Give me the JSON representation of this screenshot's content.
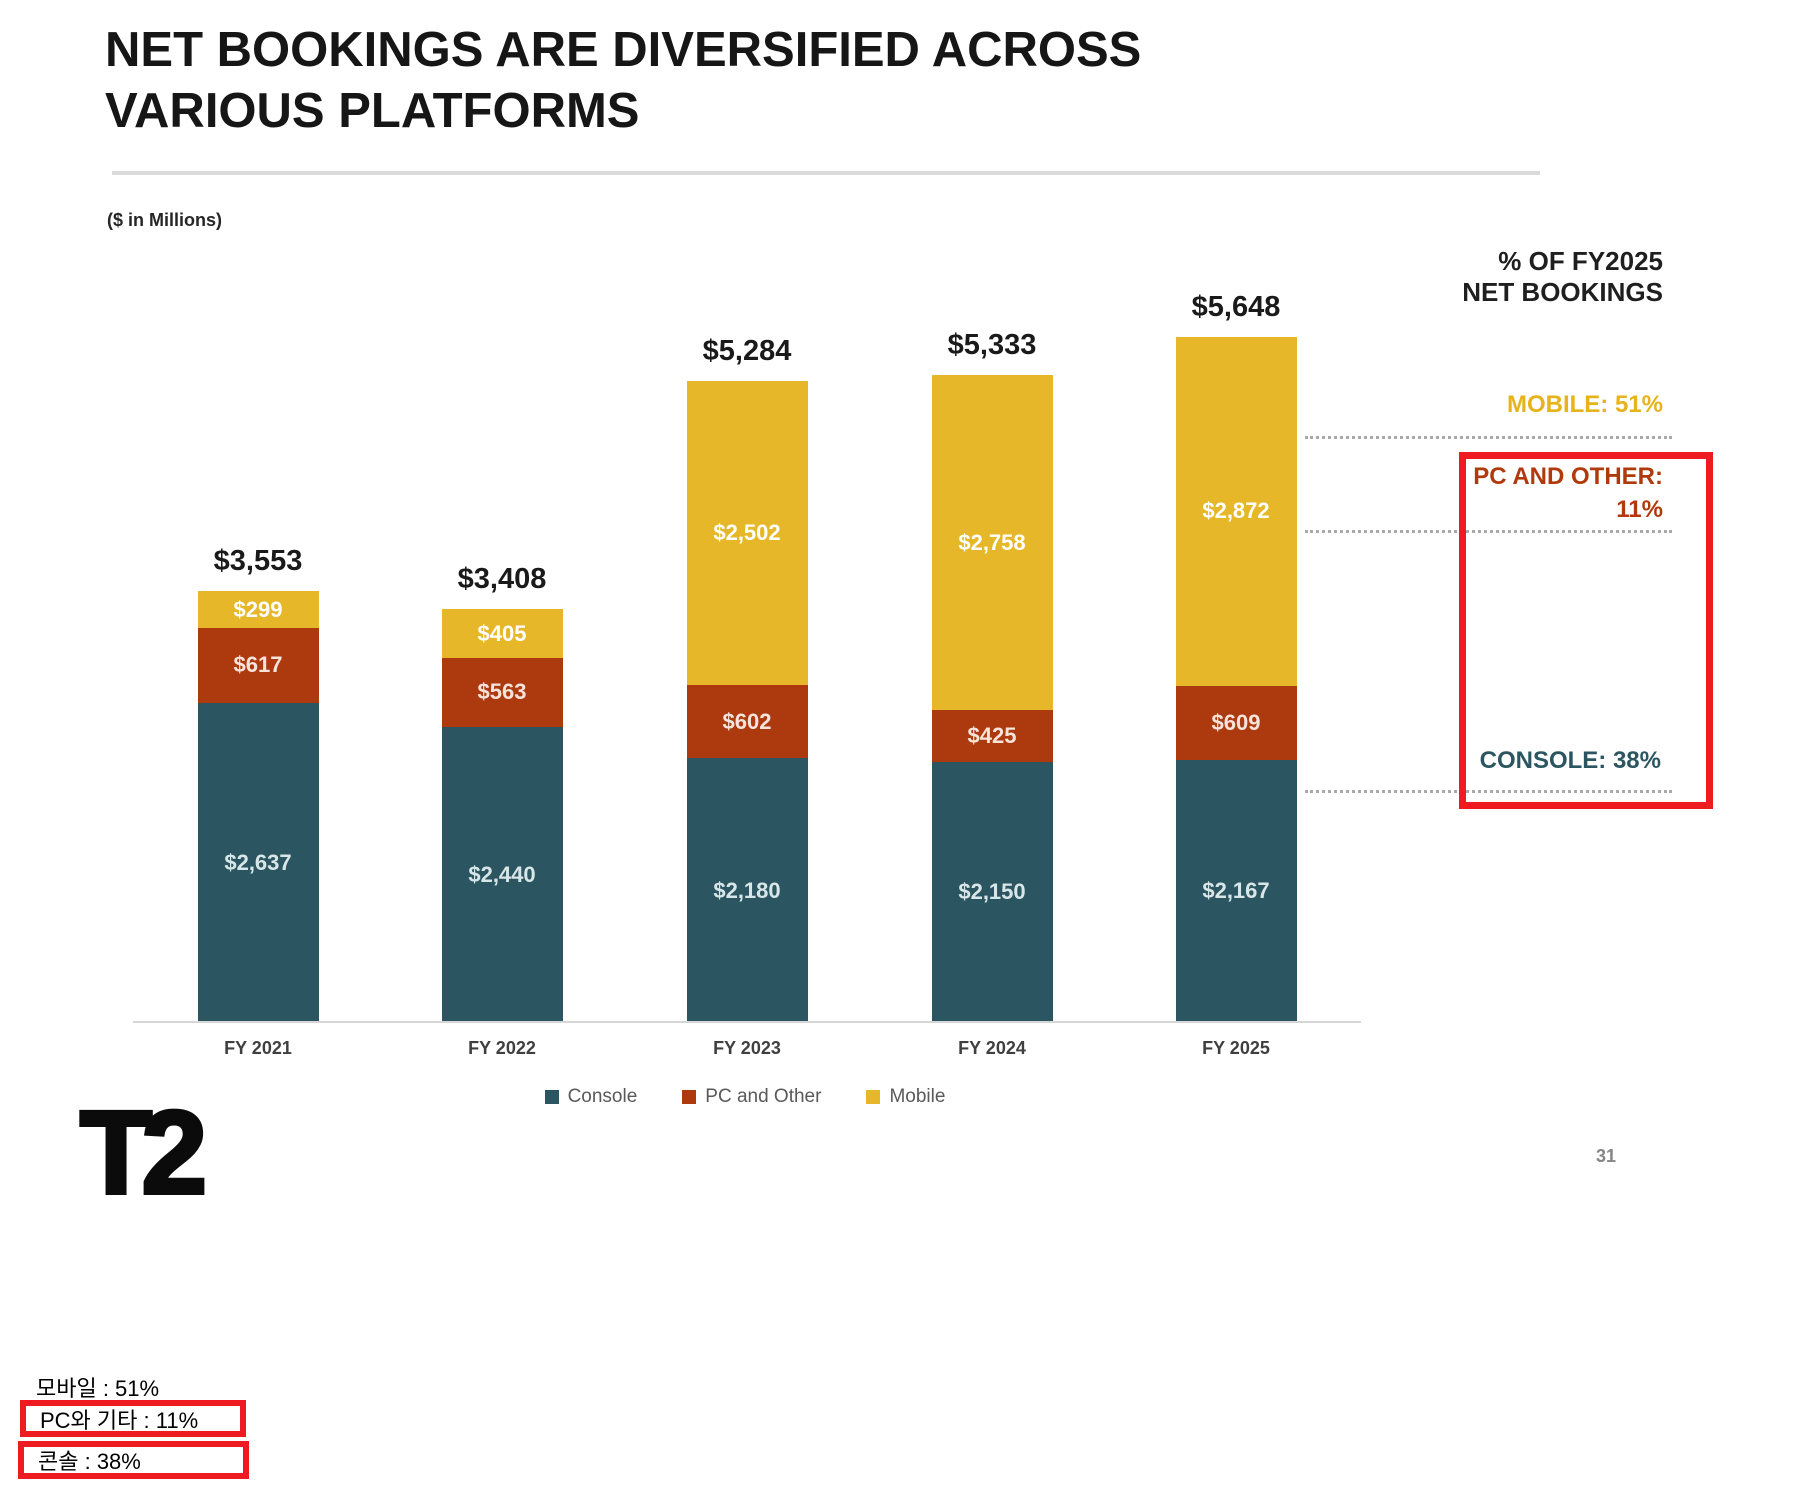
{
  "slide": {
    "title_line1": "NET BOOKINGS ARE DIVERSIFIED ACROSS",
    "title_line2": "VARIOUS PLATFORMS",
    "units_note": "($ in Millions)",
    "page_number": "31",
    "logo_text": "T2"
  },
  "right_panel": {
    "header_line1": "% OF FY2025",
    "header_line2": "NET BOOKINGS",
    "mobile_label": "MOBILE: 51%",
    "pc_label_line1": "PC AND OTHER:",
    "pc_label_line2": "11%",
    "console_label": "CONSOLE: 38%"
  },
  "annotations_korean": {
    "mobile": "모바일 : 51%",
    "pc": "PC와 기타 : 11%",
    "console": "콘솔 : 38%"
  },
  "legend": [
    {
      "label": "Console",
      "color": "#2b5661"
    },
    {
      "label": "PC and Other",
      "color": "#ac3a0e"
    },
    {
      "label": "Mobile",
      "color": "#e6b829"
    }
  ],
  "colors": {
    "console": "#2b5661",
    "pc_and_other": "#ac3a0e",
    "mobile": "#e6b829",
    "highlight_red": "#ee1c20",
    "mobile_text": "#e7b31c",
    "pc_text": "#b13a0d",
    "console_text": "#2b5661",
    "dotted_line": "#a9a9a9"
  },
  "chart_data": {
    "type": "bar",
    "stacked": true,
    "title": "NET BOOKINGS ARE DIVERSIFIED ACROSS VARIOUS PLATFORMS",
    "units": "$ in Millions",
    "categories": [
      "FY 2021",
      "FY 2022",
      "FY 2023",
      "FY 2024",
      "FY 2025"
    ],
    "totals": [
      3553,
      3408,
      5284,
      5333,
      5648
    ],
    "total_labels": [
      "$3,553",
      "$3,408",
      "$5,284",
      "$5,333",
      "$5,648"
    ],
    "series": [
      {
        "name": "Console",
        "color": "#2b5661",
        "label_color": "#d9e6e8",
        "values": [
          2637,
          2440,
          2180,
          2150,
          2167
        ],
        "labels": [
          "$2,637",
          "$2,440",
          "$2,180",
          "$2,150",
          "$2,167"
        ]
      },
      {
        "name": "PC and Other",
        "color": "#ac3a0e",
        "label_color": "#f6e3db",
        "values": [
          617,
          563,
          602,
          425,
          609
        ],
        "labels": [
          "$617",
          "$563",
          "$602",
          "$425",
          "$609"
        ]
      },
      {
        "name": "Mobile",
        "color": "#e6b829",
        "label_color": "#ffffff",
        "values": [
          299,
          405,
          2502,
          2758,
          2872
        ],
        "labels": [
          "$299",
          "$405",
          "$2,502",
          "$2,758",
          "$2,872"
        ]
      }
    ],
    "pct_of_fy2025": {
      "mobile": "51%",
      "pc_and_other": "11%",
      "console": "38%"
    },
    "legend_position": "bottom",
    "grid": false
  }
}
